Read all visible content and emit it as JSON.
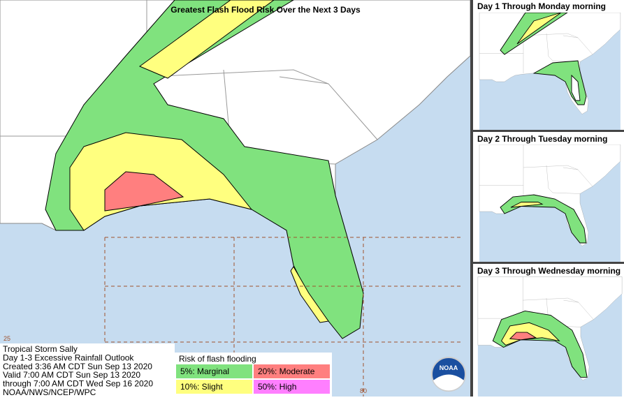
{
  "main_map": {
    "title": "Greatest Flash Flood Risk Over the Next 3 Days",
    "grid_labels": [
      "25",
      "80"
    ]
  },
  "panels": [
    {
      "title": "Day 1 Through Monday morning"
    },
    {
      "title": "Day 2 Through Tuesday morning"
    },
    {
      "title": "Day 3 Through Wednesday morning"
    }
  ],
  "info": {
    "lines": [
      "Tropical Storm Sally",
      "Day 1-3 Excessive Rainfall Outlook",
      "Created 3:36 AM CDT Sun Sep 13 2020",
      "Valid 7:00 AM CDT Sun Sep 13 2020",
      "through 7:00 AM CDT Wed Sep 16 2020",
      "NOAA/NWS/NCEP/WPC"
    ]
  },
  "legend": {
    "title": "Risk of flash flooding",
    "items": [
      {
        "label": "5%: Marginal",
        "color": "#80e27e"
      },
      {
        "label": "20%: Moderate",
        "color": "#ff7f7f"
      },
      {
        "label": "10%: Slight",
        "color": "#ffff7f"
      },
      {
        "label": "50%: High",
        "color": "#ff7fff"
      }
    ]
  },
  "logo": "NOAA"
}
